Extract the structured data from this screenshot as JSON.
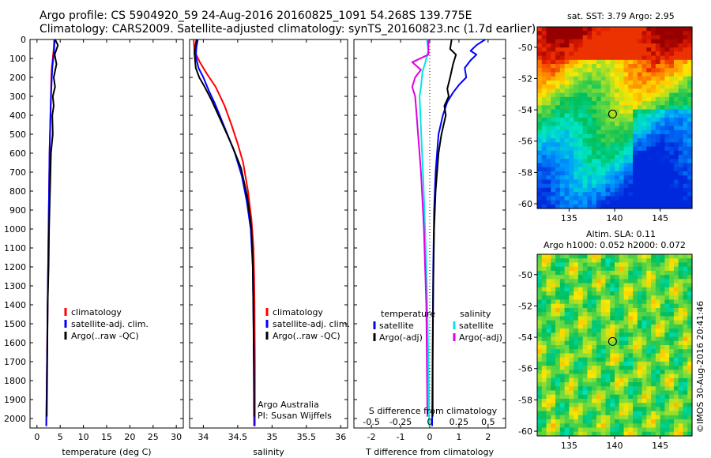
{
  "header": {
    "line1": "Argo profile: CS 5904920_59 24-Aug-2016 20160825_1091 54.268S 139.775E",
    "line2": "Climatology: CARS2009. Satellite-adjusted climatology: synTS_20160823.nc (1.7d earlier)"
  },
  "chart_data": [
    {
      "type": "line",
      "xlabel": "temperature (deg C)",
      "xlim": [
        -1.5,
        31.5
      ],
      "xticks": [
        0,
        5,
        10,
        15,
        20,
        25,
        30
      ],
      "ylim": [
        2050,
        0
      ],
      "yticks": [
        0,
        100,
        200,
        300,
        400,
        500,
        600,
        700,
        800,
        900,
        1000,
        1100,
        1200,
        1300,
        1400,
        1500,
        1600,
        1700,
        1800,
        1900,
        2000
      ],
      "ytick_labels": [
        "0",
        "100",
        "200",
        "300",
        "400",
        "500",
        "600",
        "700",
        "800",
        "900",
        "1000",
        "1100",
        "1200",
        "1300",
        "1400",
        "1500",
        "1600",
        "1700",
        "1800",
        "1900",
        "2000"
      ],
      "legend": [
        "climatology",
        "satellite-adj. clim.",
        "Argo(..raw -QC)"
      ],
      "series": [
        {
          "name": "climatology",
          "color": "#ff0000",
          "x": [
            3.7,
            3.6,
            3.4,
            3.2,
            3.1,
            3.0,
            2.9,
            2.8,
            2.7,
            2.6,
            2.5,
            2.4,
            2.3,
            2.2,
            2.1,
            2.0
          ],
          "y": [
            0,
            50,
            100,
            150,
            200,
            300,
            400,
            500,
            600,
            800,
            1000,
            1200,
            1400,
            1600,
            1800,
            2040
          ]
        },
        {
          "name": "satellite-adj. clim.",
          "color": "#0000ff",
          "x": [
            3.8,
            3.7,
            3.5,
            3.3,
            3.2,
            3.0,
            2.9,
            2.8,
            2.7,
            2.6,
            2.5,
            2.4,
            2.3,
            2.2,
            2.1,
            2.0
          ],
          "y": [
            0,
            50,
            100,
            150,
            200,
            300,
            400,
            500,
            600,
            800,
            1000,
            1200,
            1400,
            1600,
            1800,
            2040
          ]
        },
        {
          "name": "Argo(..raw -QC)",
          "color": "#000000",
          "x": [
            3.9,
            4.5,
            3.8,
            4.2,
            3.6,
            3.9,
            3.4,
            3.6,
            3.3,
            3.4,
            3.0,
            2.8,
            2.6,
            2.5,
            2.3,
            2.2,
            2.1
          ],
          "y": [
            0,
            30,
            80,
            130,
            200,
            250,
            300,
            350,
            400,
            500,
            600,
            800,
            1000,
            1200,
            1400,
            1700,
            1990
          ]
        }
      ]
    },
    {
      "type": "line",
      "xlabel": "salinity",
      "xlim": [
        33.8,
        36.1
      ],
      "xticks": [
        34,
        34.5,
        35,
        35.5,
        36
      ],
      "xtick_labels": [
        "34",
        "34.5",
        "35",
        "35.5",
        "36"
      ],
      "ylim": [
        2050,
        0
      ],
      "legend": [
        "climatology",
        "satellite-adj. clim.",
        "Argo(..raw -QC)"
      ],
      "annotation": [
        "Argo Australia",
        "PI: Susan Wijffels"
      ],
      "series": [
        {
          "name": "climatology",
          "color": "#ff0000",
          "x": [
            33.86,
            33.87,
            33.95,
            34.05,
            34.18,
            34.31,
            34.41,
            34.5,
            34.58,
            34.65,
            34.7,
            34.73,
            34.74,
            34.745,
            34.75,
            34.75
          ],
          "y": [
            0,
            60,
            120,
            180,
            250,
            350,
            450,
            550,
            650,
            800,
            950,
            1100,
            1250,
            1400,
            1700,
            2040
          ]
        },
        {
          "name": "satellite-adj. clim.",
          "color": "#0000ff",
          "x": [
            33.92,
            33.9,
            33.89,
            33.93,
            34.0,
            34.08,
            34.17,
            34.26,
            34.35,
            34.46,
            34.56,
            34.63,
            34.69,
            34.72,
            34.73,
            34.74,
            34.74
          ],
          "y": [
            0,
            40,
            90,
            150,
            200,
            270,
            340,
            420,
            500,
            600,
            720,
            850,
            1000,
            1200,
            1500,
            1800,
            2040
          ]
        },
        {
          "name": "Argo(..raw -QC)",
          "color": "#000000",
          "x": [
            33.9,
            33.87,
            33.89,
            33.94,
            34.02,
            34.12,
            34.22,
            34.32,
            34.43,
            34.55,
            34.64,
            34.7,
            34.72,
            34.73,
            34.74
          ],
          "y": [
            0,
            70,
            150,
            200,
            250,
            320,
            400,
            480,
            570,
            680,
            830,
            1000,
            1200,
            1500,
            1990
          ]
        }
      ]
    },
    {
      "type": "line",
      "xlabel": "T difference from climatology",
      "xlabel_top": "S difference from climatology",
      "xlim": [
        -2.6,
        2.6
      ],
      "xticks": [
        -2,
        -1,
        0,
        1,
        2
      ],
      "xtick_labels": [
        "-2",
        "-1",
        "0",
        "1",
        "2"
      ],
      "s_tick_labels": [
        "-0.5",
        "-0.25",
        "0",
        "0.25",
        "0.5"
      ],
      "ylim": [
        2050,
        0
      ],
      "legend_titles": [
        "temperature",
        "salinity"
      ],
      "legend": [
        "satellite",
        "Argo(-adj)",
        "satellite",
        "Argo(-adj)"
      ],
      "series": [
        {
          "name": "satellite",
          "group": "temperature",
          "color": "#0000ff",
          "x": [
            1.9,
            1.6,
            1.4,
            1.6,
            1.4,
            1.2,
            1.25,
            1.0,
            0.8,
            0.6,
            0.45,
            0.3,
            0.2,
            0.15,
            0.12,
            0.1,
            0.08
          ],
          "y": [
            0,
            30,
            60,
            80,
            110,
            150,
            200,
            240,
            280,
            330,
            400,
            500,
            700,
            900,
            1200,
            1600,
            2040
          ]
        },
        {
          "name": "Argo(-adj)",
          "group": "temperature",
          "color": "#000000",
          "x": [
            0.75,
            0.7,
            0.9,
            0.8,
            0.7,
            0.6,
            0.65,
            0.5,
            0.55,
            0.4,
            0.3,
            0.2,
            0.15,
            0.12,
            0.1,
            0.1
          ],
          "y": [
            0,
            50,
            80,
            130,
            200,
            260,
            300,
            350,
            400,
            500,
            600,
            800,
            1000,
            1300,
            1700,
            1990
          ]
        },
        {
          "name": "satellite",
          "group": "salinity",
          "color": "#00e5e5",
          "x": [
            -0.1,
            -0.05,
            -0.15,
            -0.25,
            -0.3,
            -0.35,
            -0.32,
            -0.28,
            -0.22,
            -0.16,
            -0.1,
            -0.06,
            -0.03,
            -0.02
          ],
          "y": [
            0,
            60,
            120,
            170,
            250,
            300,
            400,
            550,
            750,
            1000,
            1300,
            1600,
            1850,
            2040
          ]
        },
        {
          "name": "Argo(-adj)",
          "group": "salinity",
          "color": "#e000e0",
          "x": [
            -0.05,
            -0.05,
            -0.6,
            -0.3,
            -0.5,
            -0.6,
            -0.5,
            -0.45,
            -0.4,
            -0.3,
            -0.2,
            -0.12,
            -0.08
          ],
          "y": [
            0,
            80,
            120,
            160,
            200,
            250,
            300,
            400,
            500,
            700,
            1000,
            1400,
            1990
          ]
        }
      ]
    },
    {
      "type": "heatmap",
      "title": "sat. SST: 3.79 Argo: 2.95",
      "xticks": [
        135,
        140,
        145
      ],
      "yticks": [
        -50,
        -52,
        -54,
        -56,
        -58,
        -60
      ],
      "xlim": [
        131.5,
        148.5
      ],
      "ylim": [
        -60.3,
        -48.7
      ],
      "marker": {
        "lon": 139.775,
        "lat": -54.268
      }
    },
    {
      "type": "heatmap",
      "title": "Altim. SLA: 0.11",
      "subtitle": "Argo h1000: 0.052 h2000: 0.072",
      "xticks": [
        135,
        140,
        145
      ],
      "yticks": [
        -50,
        -52,
        -54,
        -56,
        -58,
        -60
      ],
      "xlim": [
        131.5,
        148.5
      ],
      "ylim": [
        -60.3,
        -48.7
      ],
      "marker": {
        "lon": 139.775,
        "lat": -54.268
      }
    }
  ],
  "footer": {
    "credit": "©IMOS 30-Aug-2016 20:41:46"
  }
}
